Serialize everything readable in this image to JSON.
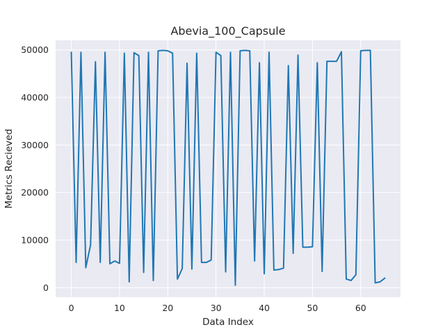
{
  "chart_data": {
    "type": "line",
    "title": "Abevia_100_Capsule",
    "xlabel": "Data Index",
    "ylabel": "Metrics Recieved",
    "xlim": [
      -3.25,
      68.25
    ],
    "ylim": [
      -2000,
      52000
    ],
    "xticks": [
      0,
      10,
      20,
      30,
      40,
      50,
      60
    ],
    "yticks": [
      0,
      10000,
      20000,
      30000,
      40000,
      50000
    ],
    "grid": true,
    "background": "#eaeaf2",
    "line_color": "#1f77b4",
    "series": [
      {
        "x": [
          0,
          1,
          2,
          3,
          4,
          5,
          6,
          7,
          8,
          9,
          10,
          11,
          12,
          13,
          14,
          15,
          16,
          17,
          18,
          19,
          20,
          21,
          22,
          23,
          24,
          25,
          26,
          27,
          28,
          29,
          30,
          31,
          32,
          33,
          34,
          35,
          36,
          37,
          38,
          39,
          40,
          41,
          42,
          43,
          44,
          45,
          46,
          47,
          48,
          49,
          50,
          51,
          52,
          53,
          54,
          55,
          56,
          57,
          58,
          59,
          60,
          61,
          62,
          63,
          64,
          65
        ],
        "values": [
          49500,
          5300,
          49500,
          4200,
          9000,
          47500,
          5300,
          49500,
          5000,
          5600,
          5100,
          49300,
          1200,
          49400,
          48800,
          3200,
          49500,
          1500,
          49800,
          49900,
          49800,
          49300,
          1800,
          4000,
          47200,
          3900,
          49300,
          5300,
          5300,
          5800,
          49500,
          48800,
          3300,
          49500,
          500,
          49800,
          49900,
          49800,
          5600,
          47300,
          2900,
          49500,
          3700,
          3800,
          4100,
          46700,
          7200,
          48900,
          8500,
          8500,
          8600,
          47300,
          3400,
          47600,
          47600,
          47600,
          49600,
          1800,
          1500,
          2700,
          49800,
          49900,
          49900,
          1000,
          1200,
          2000
        ]
      }
    ]
  }
}
